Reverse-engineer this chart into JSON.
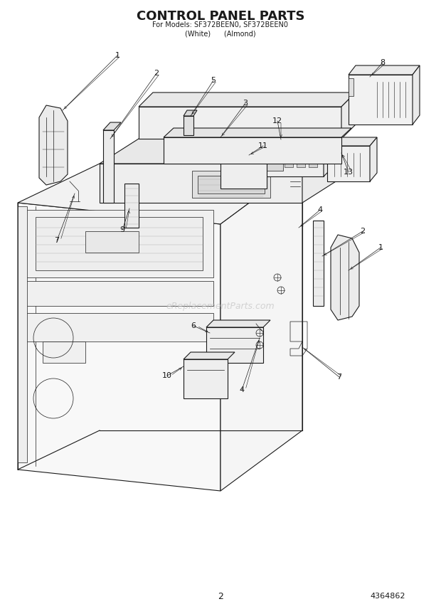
{
  "title": "CONTROL PANEL PARTS",
  "subtitle1": "For Models: SF372BEEN0, SF372BEEN0",
  "subtitle2": "(White)      (Almond)",
  "page_num": "2",
  "doc_num": "4364862",
  "bg_color": "#ffffff",
  "line_color": "#1a1a1a",
  "watermark": "eReplacementParts.com",
  "watermark_color": "#bbbbbb",
  "lw_main": 0.8,
  "lw_thin": 0.5,
  "lw_leader": 0.5
}
